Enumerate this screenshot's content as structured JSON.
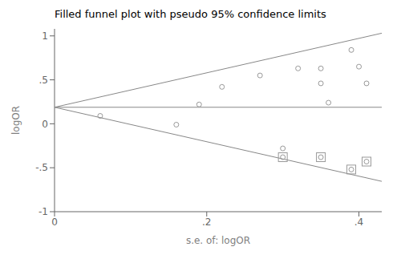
{
  "chart_data": {
    "type": "scatter",
    "title": "Filled funnel plot with pseudo 95% confidence limits",
    "x_label": "s.e. of: logOR",
    "y_label": "logOR",
    "xlim": [
      0,
      0.43
    ],
    "ylim": [
      -1,
      1.08
    ],
    "xticks": [
      0,
      {
        "value": 0.2,
        "label": ".2"
      },
      {
        "value": 0.4,
        "label": ".4"
      }
    ],
    "yticks": [
      -1,
      {
        "value": -0.5,
        "label": "-.5"
      },
      0,
      {
        "value": 0.5,
        "label": ".5"
      },
      1
    ],
    "grid": false,
    "series": [
      {
        "type": "line",
        "color": "#888888",
        "x": [
          0,
          0.43
        ],
        "values": [
          0.188,
          1.0308
        ]
      },
      {
        "type": "line",
        "color": "#888888",
        "x": [
          0,
          0.43
        ],
        "values": [
          0.188,
          -0.6548
        ]
      },
      {
        "type": "line",
        "color": "#888888",
        "x": [
          0,
          0.43
        ],
        "values": [
          0.188,
          0.188
        ]
      },
      {
        "type": "scatter",
        "color": "#999999",
        "marker": "circle",
        "x": [
          0.06,
          0.16,
          0.19,
          0.22,
          0.27,
          0.3,
          0.32,
          0.35,
          0.35,
          0.36,
          0.39,
          0.4,
          0.41
        ],
        "values": [
          0.09,
          -0.01,
          0.22,
          0.42,
          0.55,
          -0.28,
          0.63,
          0.63,
          0.46,
          0.24,
          0.84,
          0.65,
          0.46
        ]
      },
      {
        "type": "scatter",
        "color": "#999999",
        "marker": "circle_in_square",
        "x": [
          0.3,
          0.35,
          0.39,
          0.41
        ],
        "values": [
          -0.38,
          -0.38,
          -0.52,
          -0.43
        ]
      }
    ]
  }
}
